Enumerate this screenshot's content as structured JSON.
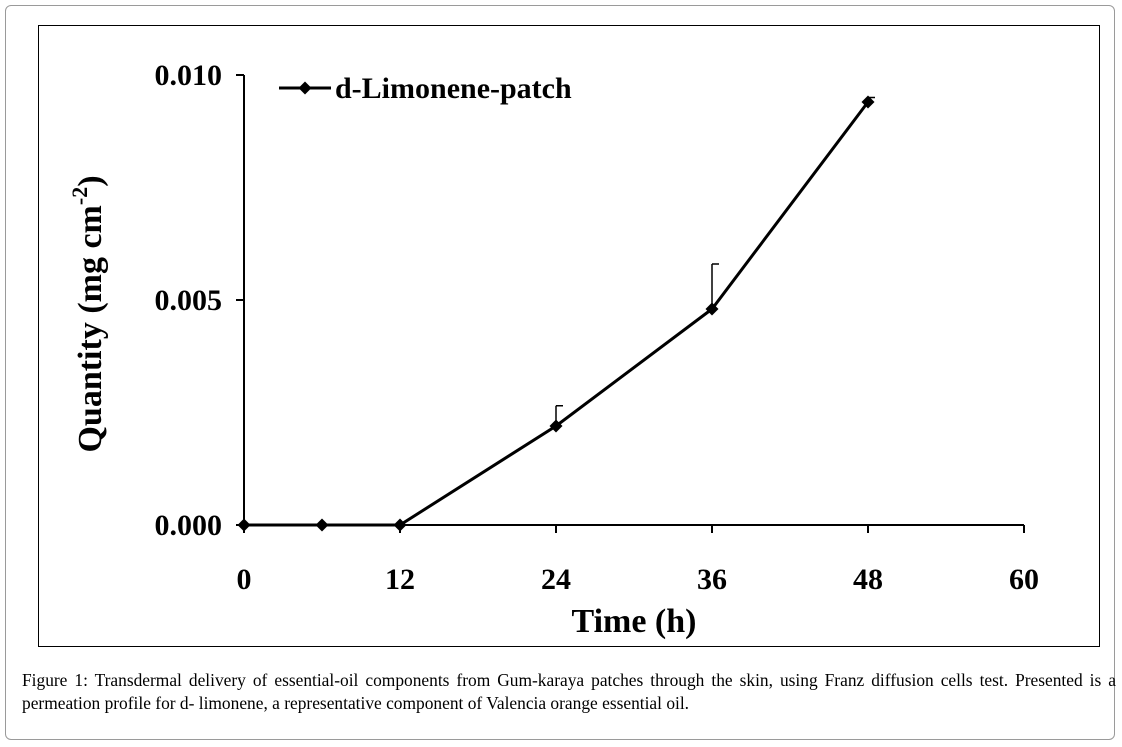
{
  "chart_data": {
    "type": "line",
    "title": "",
    "xlabel": "Time (h)",
    "ylabel_main": "Quantity (mg cm",
    "ylabel_sup": "-2",
    "ylabel_close": ")",
    "xlim": [
      0,
      60
    ],
    "ylim": [
      0,
      0.01
    ],
    "x_ticks": [
      0,
      12,
      24,
      36,
      48,
      60
    ],
    "y_ticks": [
      0.0,
      0.005,
      0.01
    ],
    "x_tick_labels": [
      "0",
      "12",
      "24",
      "36",
      "48",
      "60"
    ],
    "y_tick_labels": [
      "0.000",
      "0.005",
      "0.010"
    ],
    "grid": false,
    "legend_position": "top-left",
    "series": [
      {
        "name": "d-Limonene-patch",
        "color": "#000000",
        "marker": "diamond",
        "x": [
          0,
          6,
          12,
          24,
          36,
          48
        ],
        "y": [
          0.0,
          0.0,
          0.0,
          0.0022,
          0.0048,
          0.0094
        ],
        "error_upper": [
          0.0,
          0.0,
          0.0,
          0.00045,
          0.001,
          0.0001
        ]
      }
    ]
  },
  "caption": {
    "label": "Figure 1:",
    "text": " Transdermal delivery of essential-oil components from Gum-karaya patches through the skin, using Franz diffusion cells test. Presented is a permeation profile for d- limonene, a representative component of Valencia orange essential oil."
  }
}
